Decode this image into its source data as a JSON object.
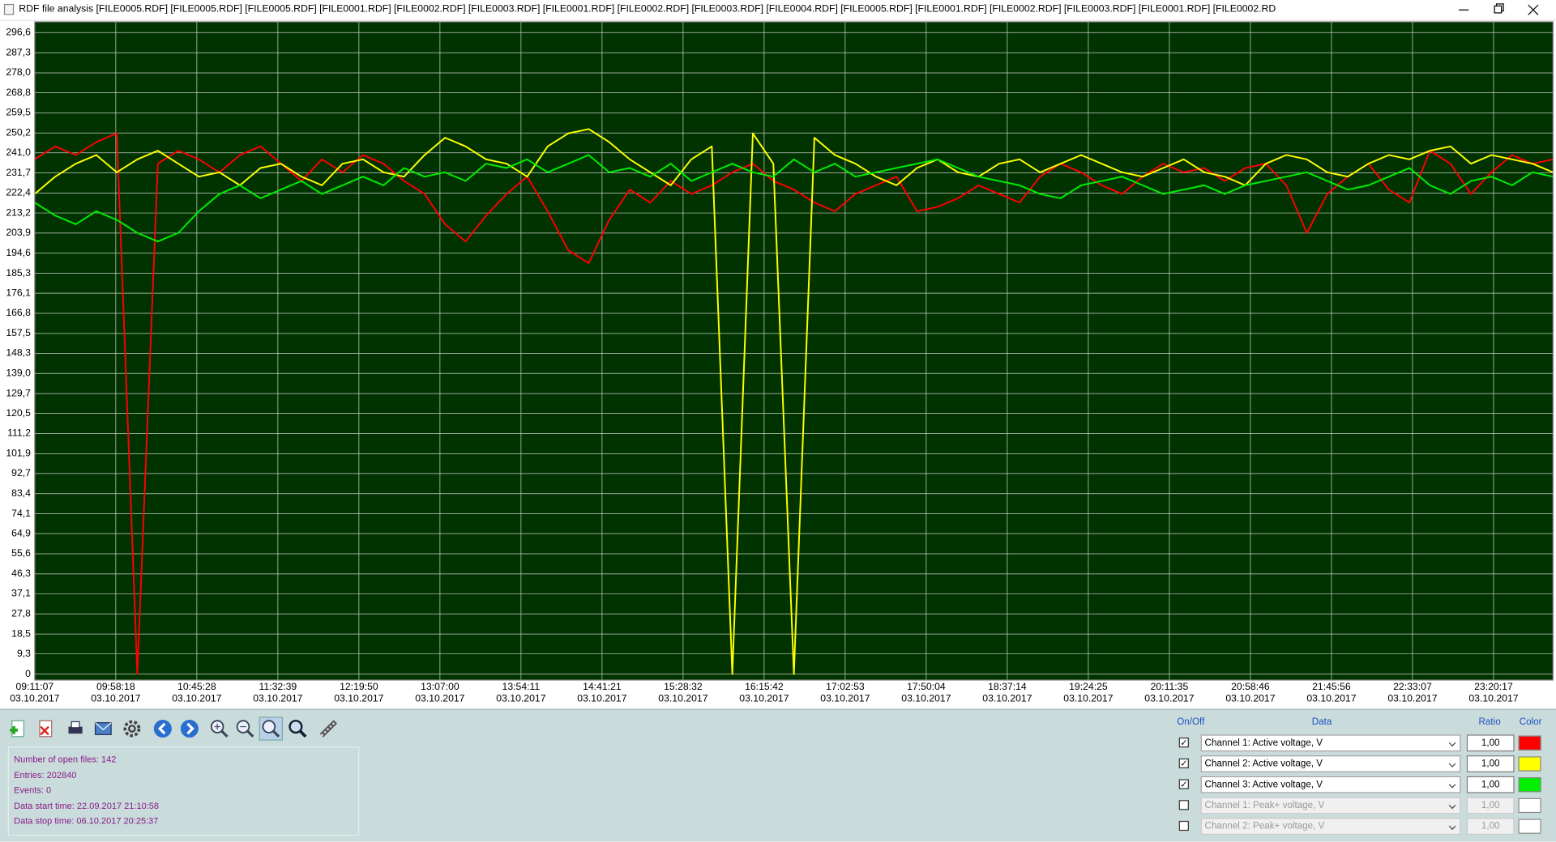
{
  "window": {
    "title": "RDF file analysis [FILE0005.RDF] [FILE0005.RDF] [FILE0005.RDF] [FILE0001.RDF] [FILE0002.RDF] [FILE0003.RDF] [FILE0001.RDF] [FILE0002.RDF] [FILE0003.RDF] [FILE0004.RDF] [FILE0005.RDF] [FILE0001.RDF] [FILE0002.RDF] [FILE0003.RDF] [FILE0001.RDF] [FILE0002.RD"
  },
  "chart_data": {
    "type": "line",
    "background": "#003300",
    "grid": true,
    "ylim": [
      -2.8,
      301.6
    ],
    "yticks": [
      0,
      {
        "value": 9.3,
        "label": "9,3"
      },
      {
        "value": 18.5,
        "label": "18,5"
      },
      {
        "value": 27.8,
        "label": "27,8"
      },
      {
        "value": 37.1,
        "label": "37,1"
      },
      {
        "value": 46.3,
        "label": "46,3"
      },
      {
        "value": 55.6,
        "label": "55,6"
      },
      {
        "value": 64.9,
        "label": "64,9"
      },
      {
        "value": 74.1,
        "label": "74,1"
      },
      {
        "value": 83.4,
        "label": "83,4"
      },
      {
        "value": 92.7,
        "label": "92,7"
      },
      {
        "value": 101.9,
        "label": "101,9"
      },
      {
        "value": 111.2,
        "label": "111,2"
      },
      {
        "value": 120.5,
        "label": "120,5"
      },
      {
        "value": 129.7,
        "label": "129,7"
      },
      {
        "value": 139.0,
        "label": "139,0"
      },
      {
        "value": 148.3,
        "label": "148,3"
      },
      {
        "value": 157.5,
        "label": "157,5"
      },
      {
        "value": 166.8,
        "label": "166,8"
      },
      {
        "value": 176.1,
        "label": "176,1"
      },
      {
        "value": 185.3,
        "label": "185,3"
      },
      {
        "value": 194.6,
        "label": "194,6"
      },
      {
        "value": 203.9,
        "label": "203,9"
      },
      {
        "value": 213.2,
        "label": "213,2"
      },
      {
        "value": 222.4,
        "label": "222,4"
      },
      {
        "value": 231.7,
        "label": "231,7"
      },
      {
        "value": 241.0,
        "label": "241,0"
      },
      {
        "value": 250.2,
        "label": "250,2"
      },
      {
        "value": 259.5,
        "label": "259,5"
      },
      {
        "value": 268.8,
        "label": "268,8"
      },
      {
        "value": 278.0,
        "label": "278,0"
      },
      {
        "value": 287.3,
        "label": "287,3"
      },
      {
        "value": 296.6,
        "label": "296,6"
      }
    ],
    "xticks": [
      {
        "time": "09:11:07",
        "date": "03.10.2017"
      },
      {
        "time": "09:58:18",
        "date": "03.10.2017"
      },
      {
        "time": "10:45:28",
        "date": "03.10.2017"
      },
      {
        "time": "11:32:39",
        "date": "03.10.2017"
      },
      {
        "time": "12:19:50",
        "date": "03.10.2017"
      },
      {
        "time": "13:07:00",
        "date": "03.10.2017"
      },
      {
        "time": "13:54:11",
        "date": "03.10.2017"
      },
      {
        "time": "14:41:21",
        "date": "03.10.2017"
      },
      {
        "time": "15:28:32",
        "date": "03.10.2017"
      },
      {
        "time": "16:15:42",
        "date": "03.10.2017"
      },
      {
        "time": "17:02:53",
        "date": "03.10.2017"
      },
      {
        "time": "17:50:04",
        "date": "03.10.2017"
      },
      {
        "time": "18:37:14",
        "date": "03.10.2017"
      },
      {
        "time": "19:24:25",
        "date": "03.10.2017"
      },
      {
        "time": "20:11:35",
        "date": "03.10.2017"
      },
      {
        "time": "20:58:46",
        "date": "03.10.2017"
      },
      {
        "time": "21:45:56",
        "date": "03.10.2017"
      },
      {
        "time": "22:33:07",
        "date": "03.10.2017"
      },
      {
        "time": "23:20:17",
        "date": "03.10.2017"
      }
    ],
    "series": [
      {
        "color": "#ff0000",
        "values": [
          238,
          244,
          240,
          246,
          250,
          0,
          236,
          242,
          238,
          232,
          240,
          244,
          236,
          228,
          238,
          232,
          240,
          236,
          228,
          222,
          208,
          200,
          212,
          222,
          230,
          214,
          196,
          190,
          210,
          224,
          218,
          228,
          222,
          226,
          232,
          236,
          228,
          224,
          218,
          214,
          222,
          226,
          230,
          214,
          216,
          220,
          226,
          222,
          218,
          230,
          236,
          232,
          226,
          222,
          230,
          236,
          232,
          234,
          228,
          234,
          236,
          226,
          204,
          222,
          230,
          236,
          224,
          218,
          242,
          236,
          222,
          232,
          240,
          236,
          238
        ]
      },
      {
        "color": "#ffff00",
        "values": [
          222,
          230,
          236,
          240,
          232,
          238,
          242,
          236,
          230,
          232,
          226,
          234,
          236,
          230,
          226,
          236,
          238,
          232,
          230,
          240,
          248,
          244,
          238,
          236,
          230,
          244,
          250,
          252,
          246,
          238,
          232,
          226,
          238,
          244,
          0,
          250,
          236,
          0,
          248,
          240,
          236,
          230,
          226,
          234,
          238,
          232,
          230,
          236,
          238,
          232,
          236,
          240,
          236,
          232,
          230,
          234,
          238,
          232,
          230,
          226,
          236,
          240,
          238,
          232,
          230,
          236,
          240,
          238,
          242,
          244,
          236,
          240,
          238,
          236,
          232
        ]
      },
      {
        "color": "#00ee00",
        "values": [
          218,
          212,
          208,
          214,
          210,
          204,
          200,
          204,
          214,
          222,
          226,
          220,
          224,
          228,
          222,
          226,
          230,
          226,
          234,
          230,
          232,
          228,
          236,
          234,
          238,
          232,
          236,
          240,
          232,
          234,
          230,
          236,
          228,
          232,
          236,
          232,
          230,
          238,
          232,
          236,
          230,
          232,
          234,
          236,
          238,
          234,
          230,
          228,
          226,
          222,
          220,
          226,
          228,
          230,
          226,
          222,
          224,
          226,
          222,
          226,
          228,
          230,
          232,
          228,
          224,
          226,
          230,
          234,
          226,
          222,
          228,
          230,
          226,
          232,
          230
        ]
      }
    ]
  },
  "info": [
    "Number of open files: 142",
    "Entries: 202840",
    "Events: 0",
    "Data start time: 22.09.2017 21:10:58",
    "Data stop time: 06.10.2017 20:25:37"
  ],
  "controls": {
    "headers": [
      "On/Off",
      "Data",
      "Ratio",
      "Color"
    ],
    "rows": [
      {
        "checked": true,
        "enabled": true,
        "label": "Channel 1: Active voltage, V",
        "ratio": "1,00",
        "color": "#ff0000"
      },
      {
        "checked": true,
        "enabled": true,
        "label": "Channel 2: Active voltage, V",
        "ratio": "1,00",
        "color": "#ffff00"
      },
      {
        "checked": true,
        "enabled": true,
        "label": "Channel 3: Active voltage, V",
        "ratio": "1,00",
        "color": "#00ee00"
      },
      {
        "checked": false,
        "enabled": false,
        "label": "Channel 1: Peak+ voltage, V",
        "ratio": "1,00",
        "color": "#ffffff"
      },
      {
        "checked": false,
        "enabled": false,
        "label": "Channel 2: Peak+ voltage, V",
        "ratio": "1,00",
        "color": "#ffffff"
      }
    ]
  }
}
